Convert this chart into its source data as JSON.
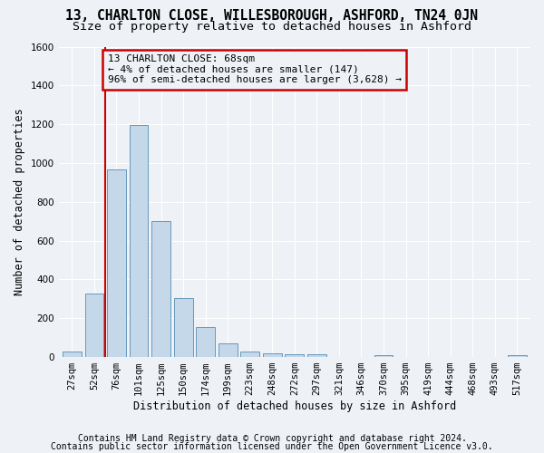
{
  "title1": "13, CHARLTON CLOSE, WILLESBOROUGH, ASHFORD, TN24 0JN",
  "title2": "Size of property relative to detached houses in Ashford",
  "xlabel": "Distribution of detached houses by size in Ashford",
  "ylabel": "Number of detached properties",
  "bar_color": "#c5d8ea",
  "bar_edge_color": "#6699bb",
  "annotation_box_color": "#cc0000",
  "categories": [
    "27sqm",
    "52sqm",
    "76sqm",
    "101sqm",
    "125sqm",
    "150sqm",
    "174sqm",
    "199sqm",
    "223sqm",
    "248sqm",
    "272sqm",
    "297sqm",
    "321sqm",
    "346sqm",
    "370sqm",
    "395sqm",
    "419sqm",
    "444sqm",
    "468sqm",
    "493sqm",
    "517sqm"
  ],
  "values": [
    30,
    325,
    965,
    1195,
    700,
    305,
    155,
    70,
    30,
    20,
    15,
    15,
    0,
    0,
    12,
    0,
    0,
    0,
    0,
    0,
    12
  ],
  "red_line_x": 1.5,
  "annotation_text": "13 CHARLTON CLOSE: 68sqm\n← 4% of detached houses are smaller (147)\n96% of semi-detached houses are larger (3,628) →",
  "ylim": [
    0,
    1600
  ],
  "yticks": [
    0,
    200,
    400,
    600,
    800,
    1000,
    1200,
    1400,
    1600
  ],
  "footer1": "Contains HM Land Registry data © Crown copyright and database right 2024.",
  "footer2": "Contains public sector information licensed under the Open Government Licence v3.0.",
  "background_color": "#eef2f7",
  "grid_color": "#ffffff",
  "title_fontsize": 10.5,
  "subtitle_fontsize": 9.5,
  "axis_label_fontsize": 8.5,
  "tick_fontsize": 7.5,
  "annotation_fontsize": 8,
  "footer_fontsize": 7
}
